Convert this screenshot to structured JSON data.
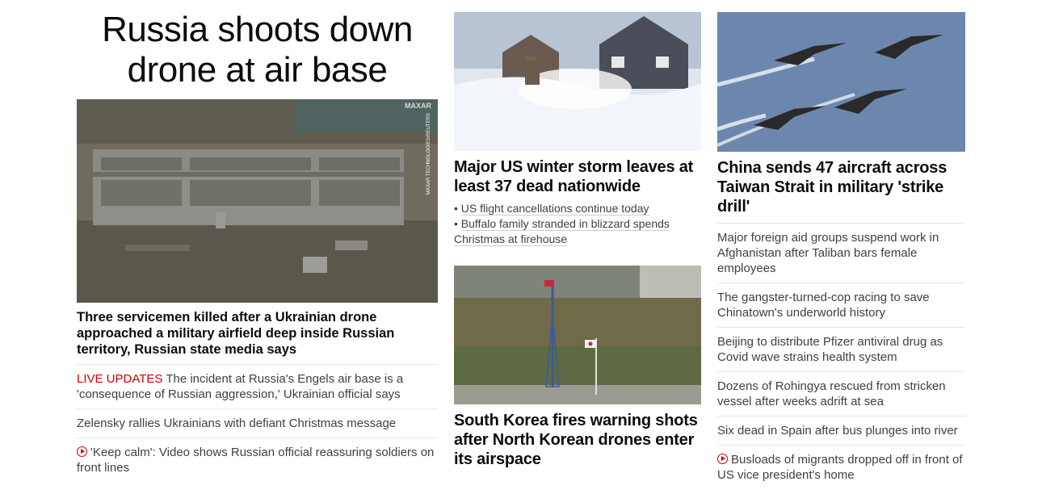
{
  "hero": {
    "title": "Russia shoots down drone at air base",
    "image_icon": "satellite-airfield-image",
    "photo_credit": "MAXAR TECHNOLOGIES/REUTERS",
    "watermark": "MAXAR",
    "headline": "Three servicemen killed after a Ukrainian drone approached a military airfield deep inside Russian territory, Russian state media says",
    "related": [
      {
        "badge": "LIVE UPDATES",
        "text": " The incident at Russia's Engels air base is a 'consequence of Russian aggression,' Ukrainian official says"
      },
      {
        "text": "Zelensky rallies Ukrainians with defiant Christmas message"
      },
      {
        "video": true,
        "text": "'Keep calm': Video shows Russian official reassuring soldiers on front lines"
      }
    ]
  },
  "storm": {
    "image_icon": "snowstorm-photo",
    "headline": "Major US winter storm leaves at least 37 dead nationwide",
    "bullets": [
      "US flight cancellations continue today",
      "Buffalo family stranded in blizzard spends Christmas at firehouse"
    ]
  },
  "korea": {
    "image_icon": "korea-border-photo",
    "headline": "South Korea fires warning shots after North Korean drones enter its airspace"
  },
  "china": {
    "image_icon": "fighter-jets-photo",
    "headline": "China sends 47 aircraft across Taiwan Strait in military 'strike drill'",
    "list": [
      {
        "text": "Major foreign aid groups suspend work in Afghanistan after Taliban bars female employees"
      },
      {
        "text": "The gangster-turned-cop racing to save Chinatown's underworld history"
      },
      {
        "text": "Beijing to distribute Pfizer antiviral drug as Covid wave strains health system"
      },
      {
        "text": "Dozens of Rohingya rescued from stricken vessel after weeks adrift at sea"
      },
      {
        "text": "Six dead in Spain after bus plunges into river"
      },
      {
        "video": true,
        "text": "Busloads of migrants dropped off in front of US vice president's home"
      }
    ]
  },
  "colors": {
    "live": "#cc0000",
    "text": "#0c0c0c",
    "secondary": "#404040",
    "divider": "#e6e6e6"
  }
}
